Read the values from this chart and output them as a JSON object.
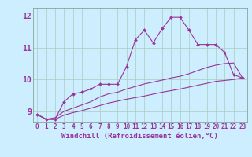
{
  "xlabel": "Windchill (Refroidissement éolien,°C)",
  "bg_color": "#cceeff",
  "grid_color": "#aaccbb",
  "line_color": "#993399",
  "x_ticks": [
    0,
    1,
    2,
    3,
    4,
    5,
    6,
    7,
    8,
    9,
    10,
    11,
    12,
    13,
    14,
    15,
    16,
    17,
    18,
    19,
    20,
    21,
    22,
    23
  ],
  "y_ticks": [
    9,
    10,
    11,
    12
  ],
  "ylim": [
    8.65,
    12.25
  ],
  "xlim": [
    -0.5,
    23.5
  ],
  "line1_x": [
    0,
    1,
    2,
    3,
    4,
    5,
    6,
    7,
    8,
    9,
    10,
    11,
    12,
    13,
    14,
    15,
    16,
    17,
    18,
    19,
    20,
    21,
    22,
    23
  ],
  "line1_y": [
    8.9,
    8.75,
    8.75,
    9.3,
    9.55,
    9.6,
    9.7,
    9.85,
    9.85,
    9.85,
    10.4,
    11.25,
    11.55,
    11.15,
    11.6,
    11.95,
    11.95,
    11.55,
    11.1,
    11.1,
    11.1,
    10.85,
    10.15,
    10.05
  ],
  "line2_x": [
    0,
    1,
    2,
    3,
    4,
    5,
    6,
    7,
    8,
    9,
    10,
    11,
    12,
    13,
    14,
    15,
    16,
    17,
    18,
    19,
    20,
    21,
    22,
    23
  ],
  "line2_y": [
    8.9,
    8.75,
    8.8,
    9.0,
    9.1,
    9.2,
    9.3,
    9.45,
    9.55,
    9.6,
    9.7,
    9.78,
    9.86,
    9.92,
    9.98,
    10.05,
    10.1,
    10.18,
    10.28,
    10.38,
    10.45,
    10.5,
    10.52,
    10.05
  ],
  "line3_x": [
    0,
    1,
    2,
    3,
    4,
    5,
    6,
    7,
    8,
    9,
    10,
    11,
    12,
    13,
    14,
    15,
    16,
    17,
    18,
    19,
    20,
    21,
    22,
    23
  ],
  "line3_y": [
    8.9,
    8.75,
    8.75,
    8.88,
    8.96,
    9.02,
    9.1,
    9.18,
    9.26,
    9.32,
    9.38,
    9.43,
    9.48,
    9.54,
    9.6,
    9.65,
    9.7,
    9.76,
    9.82,
    9.88,
    9.94,
    9.97,
    10.0,
    10.05
  ],
  "tick_fontsize": 5.5,
  "label_fontsize": 6.5
}
